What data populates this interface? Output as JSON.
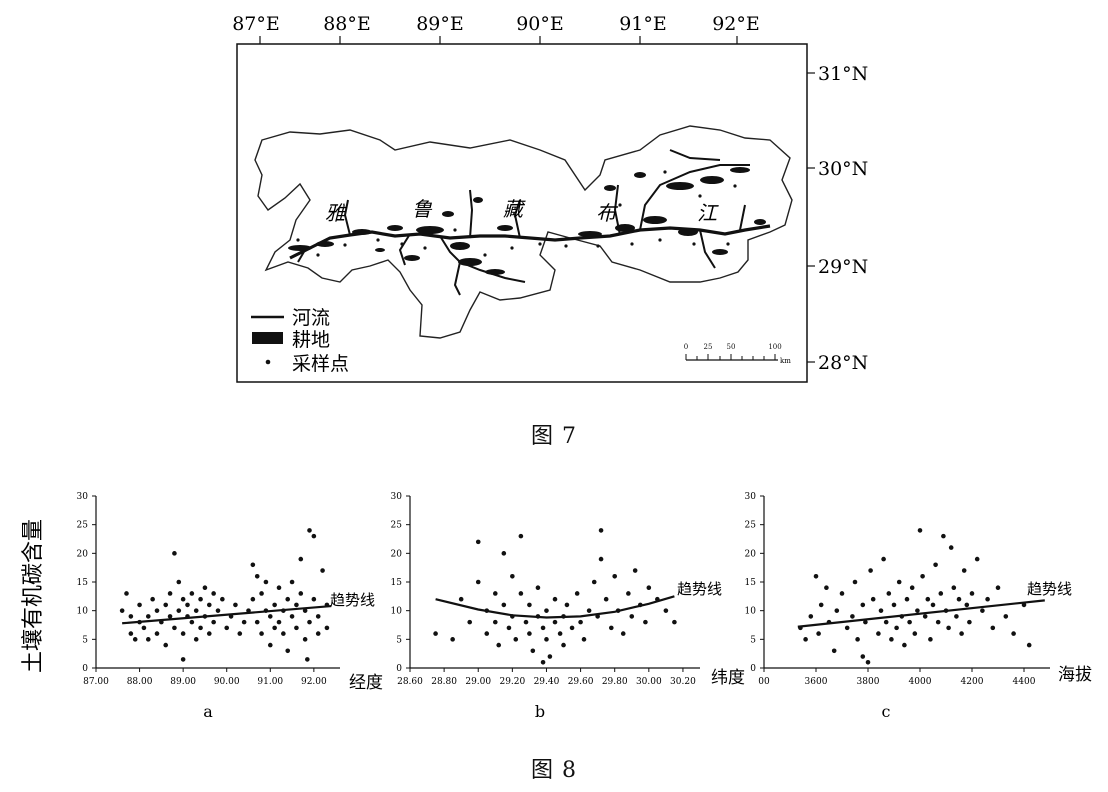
{
  "figure7": {
    "caption": "图 7",
    "lon_ticks": [
      "87°E",
      "88°E",
      "89°E",
      "90°E",
      "91°E",
      "92°E"
    ],
    "lat_ticks": [
      "31°N",
      "30°N",
      "29°N",
      "28°N"
    ],
    "river_label_chars": [
      "雅",
      "鲁",
      "藏",
      "布",
      "江"
    ],
    "legend": [
      {
        "symbol": "line",
        "label": "河流"
      },
      {
        "symbol": "block",
        "label": "耕地"
      },
      {
        "symbol": "dot",
        "label": "采样点"
      }
    ],
    "scale_bar": {
      "ticks": [
        "0",
        "25",
        "50",
        "100"
      ],
      "unit": "km"
    }
  },
  "figure8": {
    "caption": "图 8",
    "ylabel": "土壤有机碳含量",
    "trend_label": "趋势线",
    "panels": [
      {
        "letter": "a",
        "xlabel": "经度"
      },
      {
        "letter": "b",
        "xlabel": "纬度"
      },
      {
        "letter": "c",
        "xlabel": "海拔"
      }
    ]
  },
  "chart_data": [
    {
      "type": "scatter",
      "panel": "a",
      "xlabel": "经度",
      "ylabel": "土壤有机碳含量",
      "xlim": [
        87.0,
        92.6
      ],
      "ylim": [
        0,
        30
      ],
      "xticks": [
        "87.00",
        "88.00",
        "89.00",
        "90.00",
        "91.00",
        "92.00"
      ],
      "yticks": [
        "0",
        "5",
        "10",
        "15",
        "20",
        "25",
        "30"
      ],
      "trend": {
        "x": [
          87.6,
          92.4
        ],
        "y": [
          7.8,
          10.8
        ]
      },
      "points": [
        [
          87.6,
          10
        ],
        [
          87.7,
          13
        ],
        [
          87.8,
          9
        ],
        [
          87.8,
          6
        ],
        [
          87.9,
          5
        ],
        [
          88.0,
          8
        ],
        [
          88.0,
          11
        ],
        [
          88.1,
          7
        ],
        [
          88.2,
          5
        ],
        [
          88.2,
          9
        ],
        [
          88.3,
          12
        ],
        [
          88.4,
          10
        ],
        [
          88.4,
          6
        ],
        [
          88.5,
          8
        ],
        [
          88.6,
          11
        ],
        [
          88.6,
          4
        ],
        [
          88.7,
          9
        ],
        [
          88.7,
          13
        ],
        [
          88.8,
          20
        ],
        [
          88.8,
          7
        ],
        [
          88.9,
          10
        ],
        [
          88.9,
          15
        ],
        [
          89.0,
          12
        ],
        [
          89.0,
          6
        ],
        [
          89.0,
          1.5
        ],
        [
          89.1,
          9
        ],
        [
          89.1,
          11
        ],
        [
          89.2,
          13
        ],
        [
          89.2,
          8
        ],
        [
          89.3,
          10
        ],
        [
          89.3,
          5
        ],
        [
          89.4,
          12
        ],
        [
          89.4,
          7
        ],
        [
          89.5,
          14
        ],
        [
          89.5,
          9
        ],
        [
          89.6,
          11
        ],
        [
          89.6,
          6
        ],
        [
          89.7,
          13
        ],
        [
          89.7,
          8
        ],
        [
          89.8,
          10
        ],
        [
          89.9,
          12
        ],
        [
          90.0,
          7
        ],
        [
          90.1,
          9
        ],
        [
          90.2,
          11
        ],
        [
          90.3,
          6
        ],
        [
          90.4,
          8
        ],
        [
          90.5,
          10
        ],
        [
          90.6,
          18
        ],
        [
          90.6,
          12
        ],
        [
          90.7,
          16
        ],
        [
          90.7,
          8
        ],
        [
          90.8,
          13
        ],
        [
          90.8,
          6
        ],
        [
          90.9,
          10
        ],
        [
          90.9,
          15
        ],
        [
          91.0,
          9
        ],
        [
          91.0,
          4
        ],
        [
          91.1,
          11
        ],
        [
          91.1,
          7
        ],
        [
          91.2,
          14
        ],
        [
          91.2,
          8
        ],
        [
          91.3,
          10
        ],
        [
          91.3,
          6
        ],
        [
          91.4,
          12
        ],
        [
          91.4,
          3
        ],
        [
          91.5,
          9
        ],
        [
          91.5,
          15
        ],
        [
          91.6,
          11
        ],
        [
          91.6,
          7
        ],
        [
          91.7,
          13
        ],
        [
          91.7,
          19
        ],
        [
          91.8,
          10
        ],
        [
          91.8,
          5
        ],
        [
          91.9,
          24
        ],
        [
          91.9,
          8
        ],
        [
          92.0,
          23
        ],
        [
          92.0,
          12
        ],
        [
          92.1,
          9
        ],
        [
          92.1,
          6
        ],
        [
          92.2,
          17
        ],
        [
          92.3,
          11
        ],
        [
          92.3,
          7
        ],
        [
          91.85,
          1.5
        ]
      ]
    },
    {
      "type": "scatter",
      "panel": "b",
      "xlabel": "纬度",
      "ylabel": "土壤有机碳含量",
      "xlim": [
        28.6,
        30.3
      ],
      "ylim": [
        0,
        30
      ],
      "xticks": [
        "28.60",
        "28.80",
        "29.00",
        "29.20",
        "29.40",
        "29.60",
        "29.80",
        "30.00",
        "30.20"
      ],
      "yticks": [
        "0",
        "5",
        "10",
        "15",
        "20",
        "25",
        "30"
      ],
      "trend": {
        "x": [
          28.75,
          30.15
        ],
        "y": [
          12,
          12.5
        ],
        "curve": [
          [
            28.75,
            12
          ],
          [
            29.0,
            10.2
          ],
          [
            29.2,
            9.2
          ],
          [
            29.4,
            8.8
          ],
          [
            29.6,
            9.0
          ],
          [
            29.8,
            9.8
          ],
          [
            30.0,
            11.2
          ],
          [
            30.15,
            12.5
          ]
        ]
      },
      "points": [
        [
          28.75,
          6
        ],
        [
          28.85,
          5
        ],
        [
          28.9,
          12
        ],
        [
          28.95,
          8
        ],
        [
          29.0,
          22
        ],
        [
          29.0,
          15
        ],
        [
          29.05,
          10
        ],
        [
          29.05,
          6
        ],
        [
          29.1,
          13
        ],
        [
          29.1,
          8
        ],
        [
          29.12,
          4
        ],
        [
          29.15,
          20
        ],
        [
          29.15,
          11
        ],
        [
          29.18,
          7
        ],
        [
          29.2,
          16
        ],
        [
          29.2,
          9
        ],
        [
          29.22,
          5
        ],
        [
          29.25,
          13
        ],
        [
          29.25,
          23
        ],
        [
          29.28,
          8
        ],
        [
          29.3,
          11
        ],
        [
          29.3,
          6
        ],
        [
          29.32,
          3
        ],
        [
          29.35,
          9
        ],
        [
          29.35,
          14
        ],
        [
          29.38,
          7
        ],
        [
          29.4,
          10
        ],
        [
          29.4,
          5
        ],
        [
          29.42,
          2
        ],
        [
          29.45,
          8
        ],
        [
          29.45,
          12
        ],
        [
          29.48,
          6
        ],
        [
          29.5,
          9
        ],
        [
          29.5,
          4
        ],
        [
          29.52,
          11
        ],
        [
          29.55,
          7
        ],
        [
          29.58,
          13
        ],
        [
          29.6,
          8
        ],
        [
          29.62,
          5
        ],
        [
          29.65,
          10
        ],
        [
          29.68,
          15
        ],
        [
          29.7,
          9
        ],
        [
          29.72,
          24
        ],
        [
          29.72,
          19
        ],
        [
          29.75,
          12
        ],
        [
          29.78,
          7
        ],
        [
          29.8,
          16
        ],
        [
          29.82,
          10
        ],
        [
          29.85,
          6
        ],
        [
          29.88,
          13
        ],
        [
          29.9,
          9
        ],
        [
          29.92,
          17
        ],
        [
          29.95,
          11
        ],
        [
          29.98,
          8
        ],
        [
          30.0,
          14
        ],
        [
          30.05,
          12
        ],
        [
          30.1,
          10
        ],
        [
          30.15,
          8
        ],
        [
          29.38,
          1
        ]
      ]
    },
    {
      "type": "scatter",
      "panel": "c",
      "xlabel": "海拔",
      "ylabel": "土壤有机碳含量",
      "xlim": [
        3400,
        4500
      ],
      "ylim": [
        0,
        30
      ],
      "xticks": [
        "00",
        "3600",
        "3800",
        "4000",
        "4200",
        "4400"
      ],
      "yticks": [
        "0",
        "5",
        "10",
        "15",
        "20",
        "25",
        "30"
      ],
      "trend": {
        "x": [
          3530,
          4480
        ],
        "y": [
          7.2,
          11.8
        ]
      },
      "points": [
        [
          3540,
          7
        ],
        [
          3560,
          5
        ],
        [
          3580,
          9
        ],
        [
          3600,
          16
        ],
        [
          3610,
          6
        ],
        [
          3620,
          11
        ],
        [
          3640,
          14
        ],
        [
          3650,
          8
        ],
        [
          3670,
          3
        ],
        [
          3680,
          10
        ],
        [
          3700,
          13
        ],
        [
          3720,
          7
        ],
        [
          3740,
          9
        ],
        [
          3750,
          15
        ],
        [
          3760,
          5
        ],
        [
          3780,
          11
        ],
        [
          3790,
          8
        ],
        [
          3800,
          1
        ],
        [
          3810,
          17
        ],
        [
          3820,
          12
        ],
        [
          3840,
          6
        ],
        [
          3850,
          10
        ],
        [
          3860,
          19
        ],
        [
          3870,
          8
        ],
        [
          3880,
          13
        ],
        [
          3890,
          5
        ],
        [
          3900,
          11
        ],
        [
          3910,
          7
        ],
        [
          3920,
          15
        ],
        [
          3930,
          9
        ],
        [
          3940,
          4
        ],
        [
          3950,
          12
        ],
        [
          3960,
          8
        ],
        [
          3970,
          14
        ],
        [
          3980,
          6
        ],
        [
          3990,
          10
        ],
        [
          4000,
          24
        ],
        [
          4010,
          16
        ],
        [
          4020,
          9
        ],
        [
          4030,
          12
        ],
        [
          4040,
          5
        ],
        [
          4050,
          11
        ],
        [
          4060,
          18
        ],
        [
          4070,
          8
        ],
        [
          4080,
          13
        ],
        [
          4090,
          23
        ],
        [
          4100,
          10
        ],
        [
          4110,
          7
        ],
        [
          4120,
          21
        ],
        [
          4130,
          14
        ],
        [
          4140,
          9
        ],
        [
          4150,
          12
        ],
        [
          4160,
          6
        ],
        [
          4170,
          17
        ],
        [
          4180,
          11
        ],
        [
          4190,
          8
        ],
        [
          4200,
          13
        ],
        [
          4220,
          19
        ],
        [
          4240,
          10
        ],
        [
          4260,
          12
        ],
        [
          4280,
          7
        ],
        [
          4300,
          14
        ],
        [
          4330,
          9
        ],
        [
          4360,
          6
        ],
        [
          4400,
          11
        ],
        [
          4420,
          4
        ],
        [
          3780,
          2
        ]
      ]
    }
  ]
}
